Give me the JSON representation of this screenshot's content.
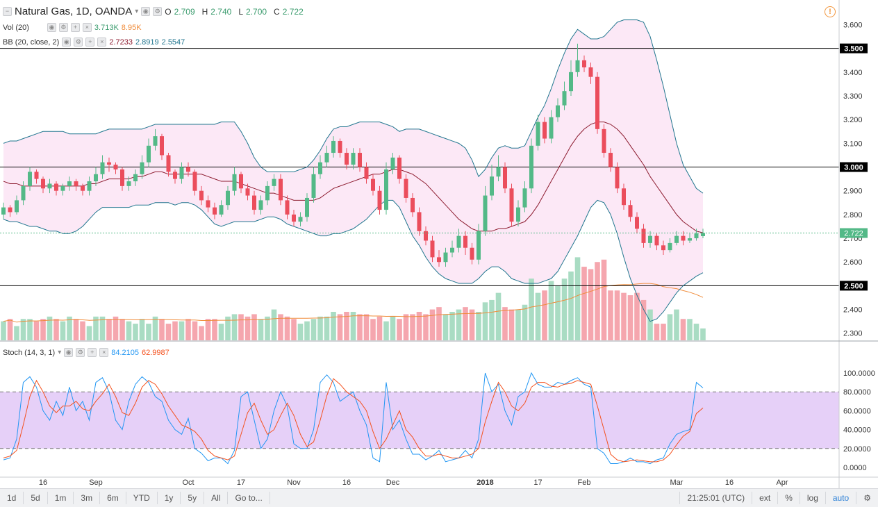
{
  "header": {
    "symbol": "Natural Gas, 1D, OANDA",
    "ohlc": [
      {
        "k": "O",
        "v": "2.709"
      },
      {
        "k": "H",
        "v": "2.740"
      },
      {
        "k": "L",
        "v": "2.700"
      },
      {
        "k": "C",
        "v": "2.722"
      }
    ],
    "vol_label": "Vol (20)",
    "vol_values": [
      "3.713K",
      "8.95K"
    ],
    "bb_label": "BB (20, close, 2)",
    "bb_values": [
      "2.7233",
      "2.8919",
      "2.5547"
    ],
    "stoch_label": "Stoch (14, 3, 1)",
    "stoch_values": [
      "84.2105",
      "62.9987"
    ]
  },
  "colors": {
    "up": "#53b987",
    "down": "#eb4d5c",
    "vol_up": "#a9dcc3",
    "vol_down": "#f5a6ae",
    "bb_fill": "#fce4f5",
    "bb_line": "#21768f",
    "bb_mid": "#8c1a2e",
    "vol_ma": "#f08c3a",
    "stoch_k": "#2196f3",
    "stoch_d": "#f4511e",
    "stoch_band": "#e2c8f7"
  },
  "chart_data": {
    "type": "candlestick",
    "title": "Natural Gas, 1D, OANDA",
    "y_range": [
      2.27,
      3.66
    ],
    "y_ticks": [
      "3.600",
      "3.500",
      "3.400",
      "3.300",
      "3.200",
      "3.100",
      "3.000",
      "2.900",
      "2.800",
      "2.700",
      "2.600",
      "2.500",
      "2.400",
      "2.300"
    ],
    "horizontal_levels": [
      "3.500",
      "3.000",
      "2.500"
    ],
    "last_price": "2.722",
    "x_labels": [
      {
        "i": 6,
        "t": "16"
      },
      {
        "i": 14,
        "t": "Sep"
      },
      {
        "i": 28,
        "t": "Oct"
      },
      {
        "i": 36,
        "t": "17"
      },
      {
        "i": 44,
        "t": "Nov"
      },
      {
        "i": 52,
        "t": "16"
      },
      {
        "i": 59,
        "t": "Dec"
      },
      {
        "i": 73,
        "t": "2018"
      },
      {
        "i": 81,
        "t": "17"
      },
      {
        "i": 88,
        "t": "Feb"
      },
      {
        "i": 102,
        "t": "Mar"
      },
      {
        "i": 110,
        "t": "16"
      },
      {
        "i": 118,
        "t": "Apr"
      }
    ],
    "close": [
      2.83,
      2.81,
      2.86,
      2.92,
      2.98,
      2.95,
      2.91,
      2.93,
      2.9,
      2.92,
      2.94,
      2.92,
      2.9,
      2.94,
      2.97,
      3.02,
      3.01,
      2.99,
      2.92,
      2.94,
      2.97,
      3.02,
      3.09,
      3.13,
      3.05,
      2.98,
      2.95,
      3.0,
      2.98,
      2.9,
      2.86,
      2.83,
      2.8,
      2.84,
      2.9,
      2.97,
      2.91,
      2.88,
      2.82,
      2.86,
      2.92,
      2.95,
      2.86,
      2.8,
      2.77,
      2.79,
      2.87,
      2.97,
      3.02,
      3.06,
      3.11,
      3.06,
      3.01,
      3.06,
      3.0,
      2.95,
      2.9,
      2.82,
      2.99,
      3.04,
      2.95,
      2.87,
      2.81,
      2.73,
      2.69,
      2.62,
      2.6,
      2.64,
      2.66,
      2.71,
      2.66,
      2.61,
      2.73,
      2.88,
      2.96,
      3.0,
      2.91,
      2.77,
      2.83,
      2.91,
      3.09,
      3.19,
      3.12,
      3.21,
      3.26,
      3.32,
      3.4,
      3.45,
      3.42,
      3.38,
      3.16,
      3.06,
      3.0,
      2.91,
      2.84,
      2.79,
      2.74,
      2.68,
      2.71,
      2.67,
      2.65,
      2.68,
      2.71,
      2.69,
      2.7,
      2.72,
      2.722
    ],
    "open": [
      2.8,
      2.83,
      2.81,
      2.86,
      2.92,
      2.98,
      2.95,
      2.91,
      2.93,
      2.9,
      2.92,
      2.94,
      2.92,
      2.9,
      2.94,
      2.97,
      3.02,
      3.01,
      2.99,
      2.92,
      2.94,
      2.97,
      3.02,
      3.09,
      3.13,
      3.05,
      2.98,
      2.95,
      3.0,
      2.98,
      2.9,
      2.86,
      2.83,
      2.8,
      2.84,
      2.9,
      2.97,
      2.91,
      2.88,
      2.82,
      2.86,
      2.92,
      2.95,
      2.86,
      2.8,
      2.77,
      2.79,
      2.87,
      2.97,
      3.02,
      3.06,
      3.11,
      3.06,
      3.01,
      3.06,
      3.0,
      2.95,
      2.9,
      2.82,
      2.99,
      3.04,
      2.95,
      2.87,
      2.81,
      2.73,
      2.69,
      2.62,
      2.6,
      2.64,
      2.66,
      2.71,
      2.66,
      2.61,
      2.73,
      2.88,
      2.96,
      3.0,
      2.91,
      2.77,
      2.83,
      2.91,
      3.09,
      3.19,
      3.12,
      3.21,
      3.26,
      3.32,
      3.4,
      3.45,
      3.42,
      3.38,
      3.16,
      3.06,
      3.0,
      2.91,
      2.84,
      2.79,
      2.74,
      2.68,
      2.71,
      2.67,
      2.65,
      2.68,
      2.71,
      2.69,
      2.7,
      2.709
    ],
    "high": [
      2.85,
      2.84,
      2.88,
      2.94,
      3.0,
      2.99,
      2.96,
      2.95,
      2.94,
      2.93,
      2.96,
      2.95,
      2.93,
      2.96,
      3.0,
      3.05,
      3.04,
      3.02,
      3.0,
      2.96,
      2.99,
      3.05,
      3.12,
      3.16,
      3.14,
      3.06,
      2.99,
      3.02,
      3.02,
      2.99,
      2.92,
      2.88,
      2.85,
      2.86,
      2.92,
      3.0,
      2.98,
      2.93,
      2.9,
      2.88,
      2.94,
      2.97,
      2.97,
      2.88,
      2.82,
      2.81,
      2.89,
      3.0,
      3.05,
      3.09,
      3.13,
      3.12,
      3.08,
      3.08,
      3.08,
      3.02,
      2.97,
      2.92,
      3.02,
      3.06,
      3.05,
      2.97,
      2.89,
      2.83,
      2.75,
      2.71,
      2.65,
      2.66,
      2.69,
      2.74,
      2.73,
      2.68,
      2.76,
      2.92,
      3.01,
      3.05,
      3.02,
      2.93,
      2.86,
      2.94,
      3.12,
      3.22,
      3.21,
      3.24,
      3.29,
      3.36,
      3.45,
      3.52,
      3.47,
      3.44,
      3.4,
      3.18,
      3.08,
      3.02,
      2.93,
      2.86,
      2.81,
      2.76,
      2.73,
      2.72,
      2.69,
      2.7,
      2.73,
      2.73,
      2.72,
      2.74,
      2.74
    ],
    "low": [
      2.78,
      2.79,
      2.8,
      2.84,
      2.9,
      2.93,
      2.89,
      2.89,
      2.88,
      2.88,
      2.9,
      2.9,
      2.88,
      2.88,
      2.92,
      2.95,
      2.98,
      2.97,
      2.9,
      2.9,
      2.92,
      2.95,
      3.0,
      3.07,
      3.03,
      2.96,
      2.93,
      2.93,
      2.96,
      2.88,
      2.84,
      2.81,
      2.78,
      2.79,
      2.82,
      2.88,
      2.89,
      2.86,
      2.8,
      2.8,
      2.84,
      2.9,
      2.84,
      2.78,
      2.75,
      2.75,
      2.77,
      2.85,
      2.95,
      3.0,
      3.04,
      3.04,
      2.99,
      2.99,
      2.98,
      2.93,
      2.88,
      2.8,
      2.8,
      2.97,
      2.93,
      2.85,
      2.79,
      2.71,
      2.67,
      2.6,
      2.58,
      2.58,
      2.62,
      2.64,
      2.63,
      2.59,
      2.59,
      2.71,
      2.86,
      2.94,
      2.89,
      2.75,
      2.75,
      2.81,
      2.89,
      3.07,
      3.1,
      3.1,
      3.19,
      3.24,
      3.3,
      3.38,
      3.4,
      3.35,
      3.14,
      3.04,
      2.98,
      2.89,
      2.82,
      2.77,
      2.72,
      2.66,
      2.66,
      2.65,
      2.63,
      2.64,
      2.67,
      2.67,
      2.68,
      2.69,
      2.7
    ],
    "bb_upper": [
      3.1,
      3.11,
      3.11,
      3.12,
      3.13,
      3.14,
      3.15,
      3.15,
      3.15,
      3.15,
      3.14,
      3.14,
      3.14,
      3.14,
      3.14,
      3.15,
      3.16,
      3.16,
      3.16,
      3.16,
      3.16,
      3.16,
      3.17,
      3.18,
      3.18,
      3.18,
      3.18,
      3.18,
      3.18,
      3.18,
      3.18,
      3.18,
      3.18,
      3.19,
      3.19,
      3.19,
      3.15,
      3.1,
      3.04,
      3.0,
      2.98,
      2.98,
      2.98,
      2.98,
      2.98,
      2.99,
      3.0,
      3.03,
      3.07,
      3.12,
      3.16,
      3.17,
      3.17,
      3.18,
      3.19,
      3.19,
      3.19,
      3.19,
      3.18,
      3.17,
      3.15,
      3.16,
      3.16,
      3.16,
      3.15,
      3.14,
      3.13,
      3.12,
      3.11,
      3.1,
      3.08,
      3.03,
      2.96,
      2.99,
      3.04,
      3.08,
      3.09,
      3.08,
      3.08,
      3.09,
      3.15,
      3.21,
      3.26,
      3.33,
      3.41,
      3.48,
      3.54,
      3.58,
      3.56,
      3.54,
      3.54,
      3.55,
      3.58,
      3.61,
      3.62,
      3.62,
      3.62,
      3.61,
      3.55,
      3.45,
      3.34,
      3.22,
      3.1,
      3.01,
      2.96,
      2.91,
      2.89
    ],
    "bb_mid": [
      2.94,
      2.93,
      2.93,
      2.92,
      2.92,
      2.92,
      2.92,
      2.92,
      2.92,
      2.92,
      2.92,
      2.92,
      2.92,
      2.93,
      2.93,
      2.94,
      2.95,
      2.95,
      2.95,
      2.95,
      2.96,
      2.96,
      2.97,
      2.98,
      2.98,
      2.97,
      2.97,
      2.97,
      2.97,
      2.97,
      2.97,
      2.96,
      2.95,
      2.94,
      2.94,
      2.94,
      2.93,
      2.92,
      2.91,
      2.9,
      2.89,
      2.89,
      2.88,
      2.87,
      2.86,
      2.86,
      2.86,
      2.86,
      2.87,
      2.89,
      2.91,
      2.92,
      2.93,
      2.94,
      2.95,
      2.96,
      2.97,
      2.97,
      2.98,
      2.99,
      2.99,
      2.98,
      2.97,
      2.95,
      2.93,
      2.9,
      2.87,
      2.84,
      2.81,
      2.78,
      2.76,
      2.74,
      2.73,
      2.73,
      2.73,
      2.74,
      2.74,
      2.75,
      2.76,
      2.77,
      2.8,
      2.84,
      2.89,
      2.94,
      2.99,
      3.04,
      3.09,
      3.13,
      3.16,
      3.18,
      3.19,
      3.19,
      3.18,
      3.16,
      3.13,
      3.09,
      3.05,
      3.01,
      2.96,
      2.92,
      2.88,
      2.84,
      2.8,
      2.77,
      2.75,
      2.73,
      2.7233
    ],
    "bb_lower": [
      2.78,
      2.77,
      2.77,
      2.76,
      2.75,
      2.75,
      2.74,
      2.73,
      2.73,
      2.72,
      2.72,
      2.73,
      2.75,
      2.78,
      2.81,
      2.83,
      2.83,
      2.83,
      2.83,
      2.83,
      2.84,
      2.84,
      2.84,
      2.85,
      2.85,
      2.85,
      2.84,
      2.85,
      2.85,
      2.84,
      2.82,
      2.79,
      2.76,
      2.75,
      2.76,
      2.77,
      2.77,
      2.77,
      2.77,
      2.78,
      2.79,
      2.79,
      2.78,
      2.76,
      2.75,
      2.74,
      2.73,
      2.72,
      2.71,
      2.71,
      2.72,
      2.72,
      2.73,
      2.74,
      2.76,
      2.78,
      2.81,
      2.84,
      2.86,
      2.86,
      2.83,
      2.77,
      2.71,
      2.67,
      2.62,
      2.58,
      2.55,
      2.53,
      2.52,
      2.51,
      2.51,
      2.51,
      2.53,
      2.56,
      2.58,
      2.58,
      2.56,
      2.53,
      2.52,
      2.51,
      2.51,
      2.51,
      2.52,
      2.53,
      2.56,
      2.61,
      2.66,
      2.71,
      2.77,
      2.83,
      2.86,
      2.85,
      2.8,
      2.72,
      2.62,
      2.53,
      2.46,
      2.4,
      2.35,
      2.36,
      2.39,
      2.43,
      2.47,
      2.5,
      2.52,
      2.54,
      2.5547
    ],
    "volume_ticks": [
      2.35,
      2.36,
      2.33,
      2.36,
      2.36,
      2.35,
      2.36,
      2.37,
      2.36,
      2.35,
      2.37,
      2.36,
      2.35,
      2.33,
      2.37,
      2.37,
      2.36,
      2.37,
      2.36,
      2.35,
      2.34,
      2.36,
      2.34,
      2.37,
      2.36,
      2.34,
      2.35,
      2.35,
      2.36,
      2.35,
      2.33,
      2.36,
      2.36,
      2.34,
      2.37,
      2.38,
      2.38,
      2.37,
      2.38,
      2.36,
      2.37,
      2.4,
      2.38,
      2.37,
      2.36,
      2.34,
      2.35,
      2.36,
      2.37,
      2.37,
      2.39,
      2.38,
      2.39,
      2.39,
      2.38,
      2.38,
      2.36,
      2.37,
      2.35,
      2.37,
      2.36,
      2.38,
      2.38,
      2.39,
      2.38,
      2.4,
      2.41,
      2.38,
      2.39,
      2.4,
      2.41,
      2.4,
      2.39,
      2.43,
      2.44,
      2.47,
      2.41,
      2.4,
      2.4,
      2.42,
      2.53,
      2.47,
      2.48,
      2.52,
      2.5,
      2.53,
      2.56,
      2.62,
      2.58,
      2.57,
      2.6,
      2.61,
      2.48,
      2.48,
      2.47,
      2.46,
      2.47,
      2.44,
      2.4,
      2.34,
      2.34,
      2.38,
      2.4,
      2.36,
      2.36,
      2.34,
      2.32
    ],
    "stoch_k": [
      8,
      10,
      30,
      90,
      96,
      85,
      60,
      50,
      70,
      55,
      85,
      60,
      70,
      50,
      90,
      95,
      80,
      50,
      40,
      70,
      88,
      96,
      90,
      75,
      70,
      50,
      40,
      35,
      52,
      20,
      15,
      7,
      10,
      10,
      4,
      18,
      75,
      80,
      50,
      20,
      30,
      60,
      80,
      65,
      25,
      20,
      20,
      40,
      90,
      98,
      90,
      70,
      75,
      80,
      60,
      45,
      10,
      6,
      90,
      40,
      50,
      30,
      14,
      14,
      8,
      12,
      18,
      6,
      8,
      10,
      18,
      10,
      30,
      100,
      80,
      88,
      60,
      45,
      75,
      80,
      100,
      88,
      85,
      85,
      90,
      88,
      92,
      95,
      88,
      85,
      20,
      15,
      4,
      4,
      6,
      10,
      6,
      6,
      4,
      8,
      10,
      25,
      35,
      38,
      40,
      90,
      84.2105
    ],
    "stoch_d": [
      10,
      12,
      18,
      45,
      75,
      92,
      80,
      65,
      58,
      65,
      65,
      70,
      62,
      60,
      70,
      78,
      88,
      75,
      58,
      55,
      68,
      85,
      92,
      88,
      78,
      65,
      55,
      45,
      42,
      38,
      30,
      18,
      12,
      10,
      8,
      12,
      35,
      58,
      68,
      50,
      35,
      40,
      55,
      68,
      55,
      35,
      22,
      27,
      50,
      76,
      94,
      88,
      80,
      75,
      70,
      60,
      38,
      20,
      30,
      45,
      60,
      40,
      32,
      20,
      12,
      12,
      14,
      12,
      10,
      10,
      12,
      14,
      20,
      48,
      70,
      90,
      80,
      65,
      60,
      68,
      85,
      90,
      90,
      86,
      85,
      88,
      89,
      92,
      90,
      88,
      65,
      40,
      14,
      8,
      6,
      7,
      8,
      7,
      6,
      6,
      8,
      14,
      24,
      33,
      38,
      57,
      62.9987
    ],
    "stoch_y_ticks": [
      "100.0000",
      "80.0000",
      "60.0000",
      "40.0000",
      "20.0000",
      "0.0000"
    ]
  },
  "bottom_bar": {
    "timeframes": [
      "1d",
      "5d",
      "1m",
      "3m",
      "6m",
      "YTD",
      "1y",
      "5y",
      "All",
      "Go to..."
    ],
    "time": "21:25:01 (UTC)",
    "right": [
      "ext",
      "%",
      "log",
      "auto"
    ]
  }
}
